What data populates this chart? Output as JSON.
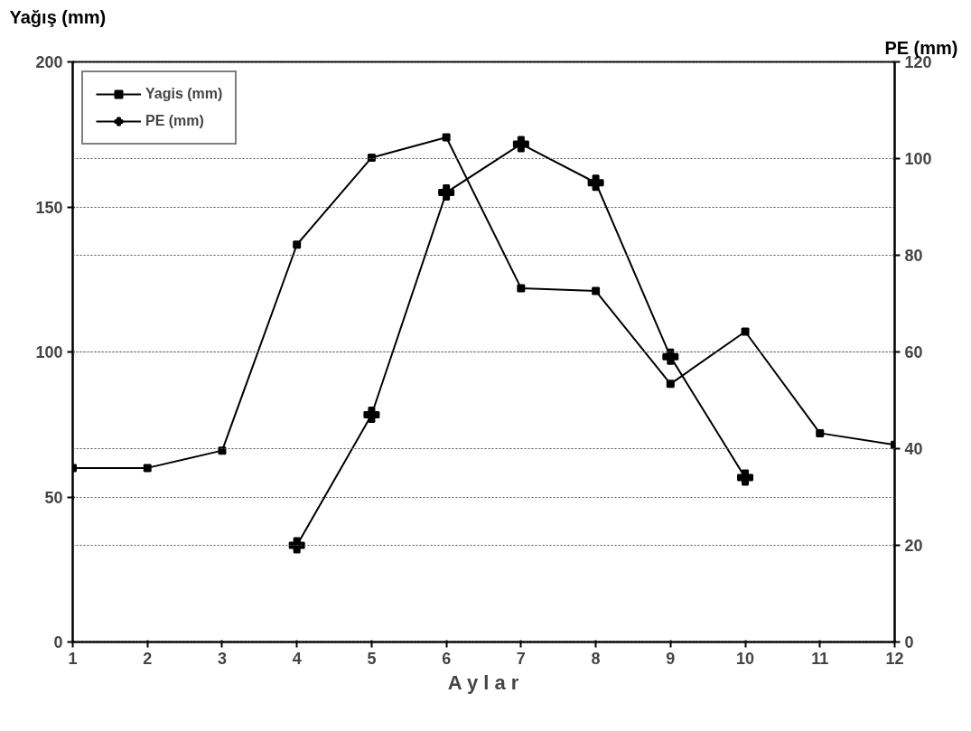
{
  "chart_data": {
    "type": "line",
    "xlabel": "A y l a r",
    "ylabel": "Yağış (mm)",
    "y2label": "PE (mm)",
    "x": [
      1,
      2,
      3,
      4,
      5,
      6,
      7,
      8,
      9,
      10,
      11,
      12
    ],
    "series": [
      {
        "name": "Yagis (mm)",
        "color": "#000000",
        "marker": "square",
        "values": [
          60,
          60,
          66,
          137,
          167,
          174,
          122,
          121,
          89,
          107,
          72,
          68
        ]
      },
      {
        "name": "PE (mm)",
        "color": "#000000",
        "marker": "cross",
        "axis": "y2",
        "values": [
          null,
          null,
          null,
          20,
          47,
          93,
          103,
          95,
          59,
          34,
          null,
          null
        ]
      }
    ],
    "xlim": [
      1,
      12
    ],
    "xticks": [
      1,
      2,
      3,
      4,
      5,
      6,
      7,
      8,
      9,
      10,
      11,
      12
    ],
    "ylim": [
      0,
      200
    ],
    "yticks": [
      0,
      50,
      100,
      150,
      200
    ],
    "y2lim": [
      0,
      120
    ],
    "y2ticks": [
      0,
      20,
      40,
      60,
      80,
      100,
      120
    ],
    "grid": "y",
    "legend": "top left"
  }
}
